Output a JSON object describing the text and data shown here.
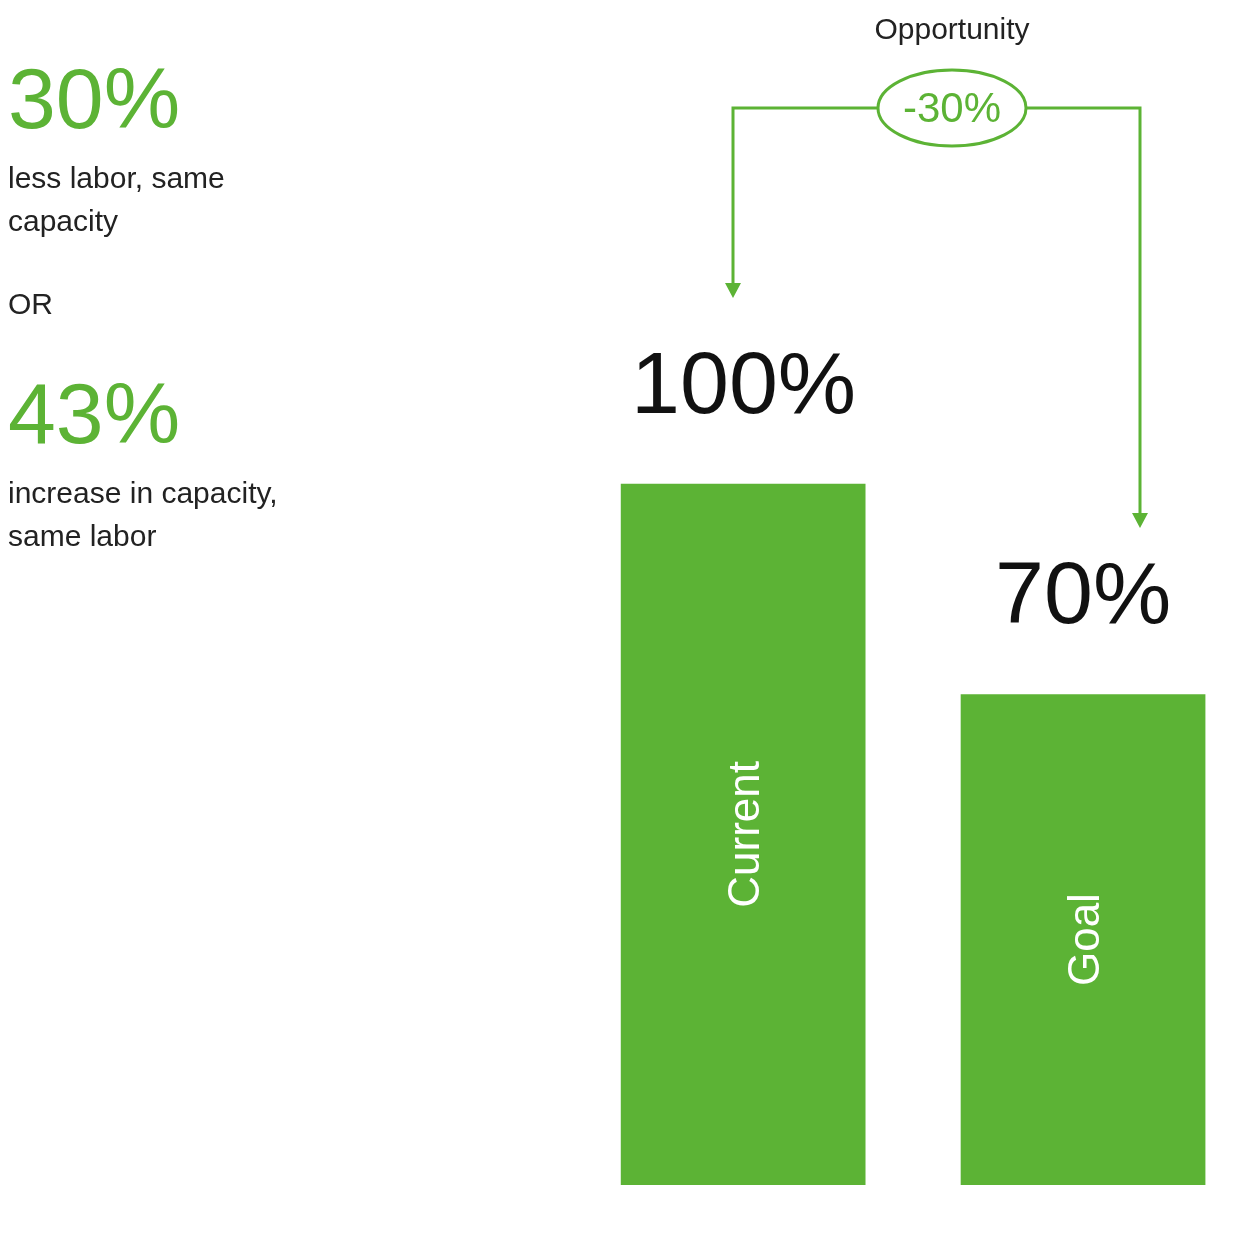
{
  "chart_data": {
    "type": "bar",
    "tick_labels": "x",
    "categories": [
      "Current",
      "Goal"
    ],
    "values": [
      100,
      70
    ],
    "value_labels": [
      "100%",
      "70%"
    ],
    "color": "#5cb335",
    "annotations": [
      "30%",
      "less labor, same capacity",
      "OR",
      "43%",
      "increase in capacity, same labor",
      "Opportunity",
      "-30%"
    ]
  }
}
